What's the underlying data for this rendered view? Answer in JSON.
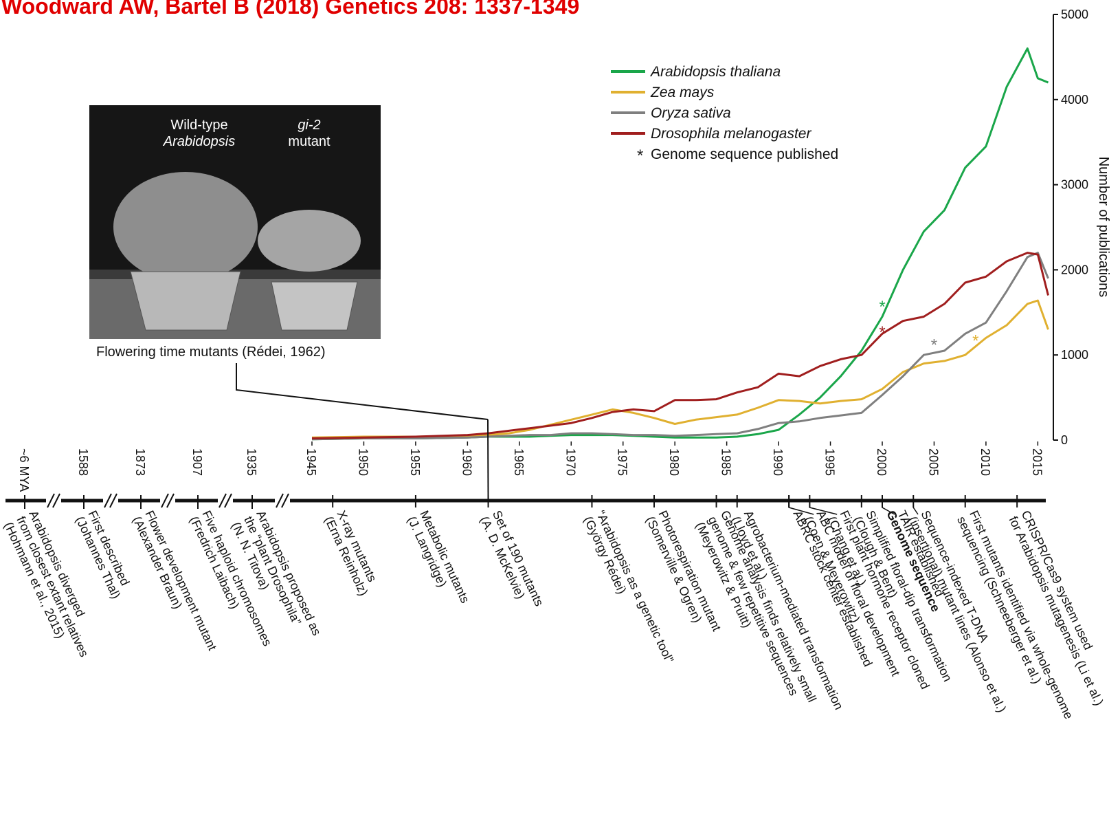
{
  "citation": "Woodward AW, Bartel B (2018) Genetics 208: 1337-1349",
  "photo": {
    "labels": [
      "Wild-type",
      "Arabidopsis",
      "gi-2",
      "mutant"
    ],
    "caption": "Flowering time mutants (Rédei, 1962)"
  },
  "chart_data": {
    "type": "line",
    "y_label": "Number of publications",
    "x": [
      1945,
      1950,
      1955,
      1960,
      1962,
      1964,
      1966,
      1968,
      1970,
      1972,
      1974,
      1976,
      1978,
      1980,
      1982,
      1984,
      1986,
      1988,
      1990,
      1992,
      1994,
      1996,
      1998,
      2000,
      2002,
      2004,
      2006,
      2008,
      2010,
      2012,
      2014,
      2015,
      2016
    ],
    "series": [
      {
        "name": "Arabidopsis thaliana",
        "color": "#1aa64a",
        "values": [
          10,
          20,
          20,
          30,
          40,
          40,
          40,
          50,
          60,
          60,
          60,
          50,
          40,
          30,
          30,
          30,
          40,
          70,
          120,
          300,
          500,
          750,
          1050,
          1450,
          2000,
          2450,
          2700,
          3200,
          3450,
          4150,
          4600,
          4250,
          4200
        ]
      },
      {
        "name": "Zea mays",
        "color": "#e0b030",
        "values": [
          30,
          40,
          40,
          50,
          60,
          80,
          120,
          180,
          240,
          300,
          360,
          320,
          260,
          190,
          240,
          270,
          300,
          380,
          470,
          460,
          430,
          460,
          480,
          600,
          800,
          900,
          930,
          1000,
          1200,
          1350,
          1600,
          1640,
          1300
        ]
      },
      {
        "name": "Oryza sativa",
        "color": "#7f7f7f",
        "values": [
          10,
          20,
          20,
          30,
          40,
          50,
          60,
          60,
          80,
          80,
          70,
          60,
          60,
          50,
          60,
          70,
          80,
          130,
          200,
          220,
          260,
          290,
          320,
          530,
          750,
          1000,
          1050,
          1250,
          1380,
          1750,
          2150,
          2200,
          1900
        ]
      },
      {
        "name": "Drosophila melanogaster",
        "color": "#a01e1e",
        "values": [
          20,
          30,
          40,
          60,
          80,
          110,
          140,
          170,
          200,
          260,
          330,
          360,
          340,
          470,
          470,
          480,
          560,
          620,
          780,
          750,
          870,
          950,
          1000,
          1250,
          1400,
          1450,
          1600,
          1850,
          1920,
          2100,
          2200,
          2180,
          1700
        ]
      }
    ],
    "genome_markers": {
      "symbol": "*",
      "label": "Genome sequence published",
      "color": "#222222",
      "points": [
        {
          "x": 2000,
          "y": 1600,
          "color": "#1aa64a"
        },
        {
          "x": 2000,
          "y": 1300,
          "color": "#a01e1e"
        },
        {
          "x": 2005,
          "y": 1150,
          "color": "#7f7f7f"
        },
        {
          "x": 2009,
          "y": 1200,
          "color": "#e0b030"
        }
      ]
    },
    "xlim": [
      1945,
      2016.5
    ],
    "xticks": [
      1945,
      1950,
      1955,
      1960,
      1965,
      1970,
      1975,
      1980,
      1985,
      1990,
      1995,
      2000,
      2005,
      2010,
      2015
    ],
    "ylim": [
      0,
      5000
    ],
    "yticks": [
      0,
      1000,
      2000,
      3000,
      4000,
      5000
    ]
  },
  "timeline": {
    "pre": [
      {
        "label": "~6 MYA",
        "lines": [
          "Arabidopsis diverged",
          "from closest extant relatives",
          "(Hohmann et al., 2015)"
        ]
      },
      {
        "label": "1588",
        "lines": [
          "First described",
          "(Johannes Thal)"
        ]
      },
      {
        "label": "1873",
        "lines": [
          "Flower development mutant",
          "(Alexander Braun)"
        ]
      },
      {
        "label": "1907",
        "lines": [
          "Five haploid chromosomes",
          "(Fredrich Laibach)"
        ]
      },
      {
        "label": "1935",
        "lines": [
          "Arabidopsis proposed as",
          "the “plant Drosophila”",
          "(N. N. Titova)"
        ]
      }
    ],
    "events": [
      {
        "x": 1947,
        "lines": [
          "X-ray mutants",
          "(Erna Reinholz)"
        ]
      },
      {
        "x": 1955,
        "lines": [
          "Metabolic mutants",
          "(J. Langridge)"
        ]
      },
      {
        "x": 1962,
        "lines": [
          "Set of 190 mutants",
          "(A. D. McKelvie)"
        ]
      },
      {
        "x": 1972,
        "lines": [
          "“Arabidopsis as a genetic tool”",
          "(György Rédei)"
        ]
      },
      {
        "x": 1978,
        "lines": [
          "Photorespiration mutant",
          "(Somerville & Ogren)"
        ]
      },
      {
        "x": 1984,
        "lines": [
          "Genome analysis finds relatively small",
          "genome & few repetitive sequences",
          "(Meyerowitz & Pruitt)"
        ]
      },
      {
        "x": 1986,
        "lines": [
          "Agrobacterium-mediated transformation",
          "(Lloyd et al.)"
        ]
      },
      {
        "x": 1991,
        "lines": [
          "ABRC stock center established"
        ]
      },
      {
        "x": 1991,
        "lines": [
          "ABC model of floral development",
          "(Coen & Meyerowitz)"
        ]
      },
      {
        "x": 1993,
        "lines": [
          "First plant hormone receptor cloned",
          "(Chang et al.)"
        ]
      },
      {
        "x": 1998,
        "lines": [
          "Simplified floral-dip transformation",
          "(Clough & Bent)"
        ]
      },
      {
        "x": 2000,
        "lines": [
          "Genome sequence"
        ],
        "bold": true
      },
      {
        "x": 2000,
        "lines": [
          "TAIR established"
        ]
      },
      {
        "x": 2003,
        "lines": [
          "Sequence-indexed T-DNA",
          "(insertional) mutant lines (Alonso et al.)"
        ]
      },
      {
        "x": 2008,
        "lines": [
          "First mutants identified via whole-genome",
          "sequencing (Schneeberger et al.)"
        ]
      },
      {
        "x": 2013,
        "lines": [
          "CRISPR/Cas9 system used",
          "for Arabidopsis mutagenesis (Li et al.)"
        ]
      }
    ]
  }
}
